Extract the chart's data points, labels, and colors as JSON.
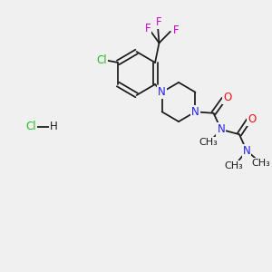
{
  "bg_color": "#f0f0f0",
  "bond_color": "#1a1a1a",
  "N_color": "#2020ee",
  "O_color": "#ee1010",
  "Cl_color": "#22bb22",
  "F_color": "#cc00cc",
  "font_size": 8.5,
  "line_width": 1.25,
  "xlim": [
    0,
    10
  ],
  "ylim": [
    0,
    10
  ],
  "figsize": [
    3.0,
    3.0
  ],
  "dpi": 100
}
